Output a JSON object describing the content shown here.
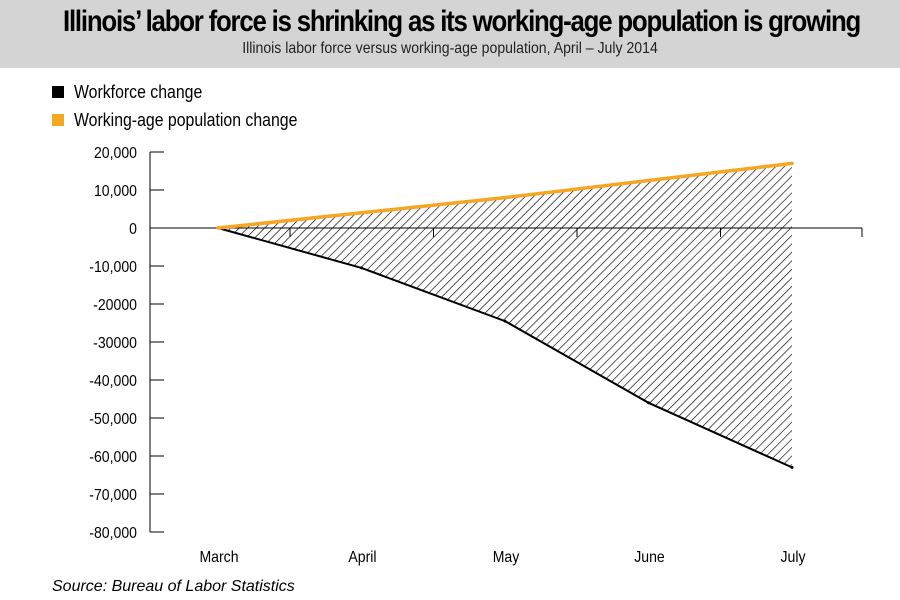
{
  "header": {
    "title": "Illinois’ labor force is shrinking as its working-age population is growing",
    "subtitle": "Illinois labor force versus working-age population, April – July 2014"
  },
  "source": "Source: Bureau of Labor Statistics",
  "colors": {
    "workforce": "#000000",
    "population": "#f5a623",
    "header_bg": "#d4d4d4"
  },
  "chart_data": {
    "type": "area",
    "categories": [
      "March",
      "April",
      "May",
      "June",
      "July"
    ],
    "series": [
      {
        "name": "Workforce change",
        "values": [
          0,
          -10500,
          -24500,
          -46000,
          -63000
        ]
      },
      {
        "name": "Working-age population change",
        "values": [
          0,
          4000,
          8000,
          12500,
          17000
        ]
      }
    ],
    "fill_between_series": "hatched",
    "legend_position": "top-left",
    "y_ticks": [
      {
        "value": 20000,
        "label": "20,000"
      },
      {
        "value": 10000,
        "label": "10,000"
      },
      {
        "value": 0,
        "label": "0"
      },
      {
        "value": -10000,
        "label": "-10,000"
      },
      {
        "value": -20000,
        "label": "-20000"
      },
      {
        "value": -30000,
        "label": "-30000"
      },
      {
        "value": -40000,
        "label": "-40,000"
      },
      {
        "value": -50000,
        "label": "-50,000"
      },
      {
        "value": -60000,
        "label": "-60,000"
      },
      {
        "value": -70000,
        "label": "-70,000"
      },
      {
        "value": -80000,
        "label": "-80,000"
      }
    ],
    "ylim": [
      -80000,
      20000
    ],
    "grid": false
  }
}
